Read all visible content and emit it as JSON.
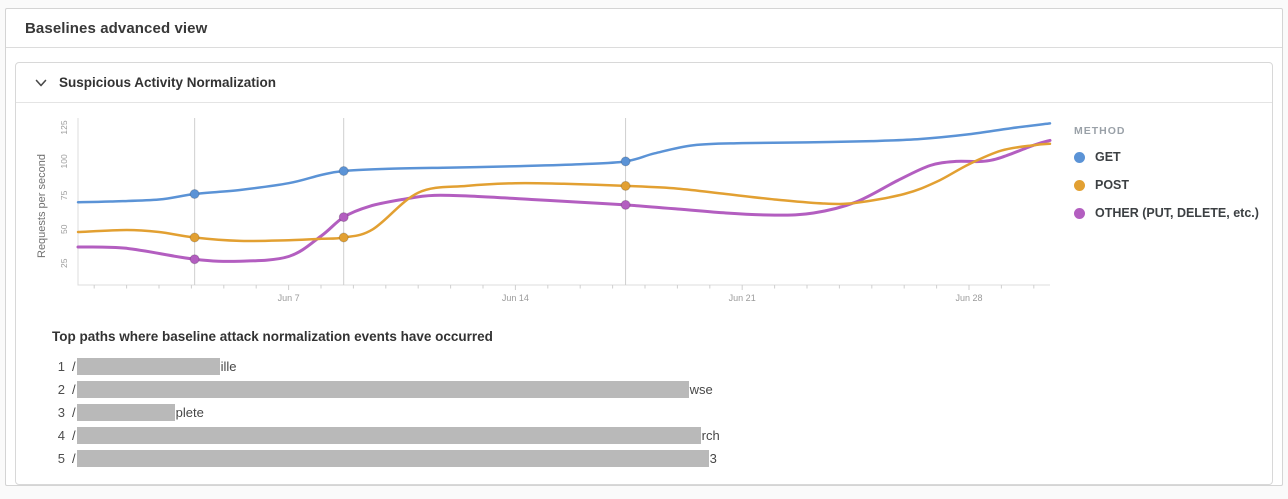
{
  "page": {
    "title": "Baselines advanced view"
  },
  "section": {
    "title": "Suspicious Activity Normalization"
  },
  "chart_data": {
    "type": "line",
    "title": "Suspicious Activity Normalization",
    "ylabel": "Requests per second",
    "legend_title": "METHOD",
    "legend_position": "right",
    "grid": false,
    "x_axis": {
      "unit": "day of June",
      "xlim": [
        0.5,
        30.5
      ],
      "tick_days": [
        7,
        14,
        21,
        28
      ],
      "tick_labels": [
        "Jun 7",
        "Jun 14",
        "Jun 21",
        "Jun 28"
      ],
      "minor_tick_step": 1
    },
    "y_axis": {
      "ylim": [
        9,
        132
      ],
      "ticks": [
        25,
        50,
        75,
        100,
        125
      ]
    },
    "event_days": [
      4.1,
      8.7,
      17.4
    ],
    "series": [
      {
        "name": "GET",
        "color": "#5b93d6",
        "width": 2.5,
        "points": [
          [
            0.5,
            70
          ],
          [
            1.5,
            70.5
          ],
          [
            3,
            72
          ],
          [
            4.1,
            76
          ],
          [
            5.5,
            79
          ],
          [
            7,
            84
          ],
          [
            8,
            90
          ],
          [
            8.7,
            93
          ],
          [
            10,
            94.5
          ],
          [
            12,
            95.5
          ],
          [
            14,
            96.5
          ],
          [
            16,
            98
          ],
          [
            17.4,
            100
          ],
          [
            18.3,
            106
          ],
          [
            19.5,
            112
          ],
          [
            21,
            113.5
          ],
          [
            23,
            114
          ],
          [
            25,
            115
          ],
          [
            26.5,
            116.5
          ],
          [
            28,
            120
          ],
          [
            29.3,
            124.5
          ],
          [
            30.5,
            128
          ]
        ],
        "markers": [
          [
            4.1,
            76
          ],
          [
            8.7,
            93
          ],
          [
            17.4,
            100
          ]
        ]
      },
      {
        "name": "POST",
        "color": "#e2a032",
        "width": 2.5,
        "points": [
          [
            0.5,
            48
          ],
          [
            2,
            49.5
          ],
          [
            3,
            48
          ],
          [
            4.1,
            44
          ],
          [
            5.5,
            41.5
          ],
          [
            7,
            42
          ],
          [
            8,
            43
          ],
          [
            8.7,
            44
          ],
          [
            9.6,
            50
          ],
          [
            11,
            77
          ],
          [
            12.5,
            82
          ],
          [
            14,
            84
          ],
          [
            15.5,
            83.5
          ],
          [
            17.4,
            82
          ],
          [
            19,
            80
          ],
          [
            20.5,
            76
          ],
          [
            22,
            72
          ],
          [
            23.5,
            69
          ],
          [
            24.5,
            69.5
          ],
          [
            26,
            76
          ],
          [
            27,
            85
          ],
          [
            28,
            98
          ],
          [
            29,
            108
          ],
          [
            30,
            112
          ],
          [
            30.5,
            113
          ]
        ],
        "markers": [
          [
            4.1,
            44
          ],
          [
            8.7,
            44
          ],
          [
            17.4,
            82
          ]
        ]
      },
      {
        "name": "OTHER (PUT, DELETE, etc.)",
        "color": "#b35ec0",
        "width": 3,
        "points": [
          [
            0.5,
            37
          ],
          [
            2,
            36
          ],
          [
            4.1,
            28
          ],
          [
            5.5,
            26.5
          ],
          [
            7,
            30
          ],
          [
            8,
            45
          ],
          [
            8.7,
            59
          ],
          [
            9.5,
            67
          ],
          [
            10.5,
            72
          ],
          [
            11.5,
            75
          ],
          [
            13,
            74
          ],
          [
            14.5,
            72
          ],
          [
            16,
            70
          ],
          [
            17.4,
            68
          ],
          [
            19,
            65
          ],
          [
            20.5,
            62
          ],
          [
            22,
            60.5
          ],
          [
            23.2,
            62
          ],
          [
            24.5,
            70
          ],
          [
            25.8,
            86
          ],
          [
            26.8,
            97
          ],
          [
            27.6,
            100
          ],
          [
            28.4,
            100
          ],
          [
            29,
            103
          ],
          [
            30,
            112
          ],
          [
            30.5,
            115.5
          ]
        ],
        "markers": [
          [
            4.1,
            28
          ],
          [
            8.7,
            59
          ],
          [
            17.4,
            68
          ]
        ]
      }
    ]
  },
  "paths_section": {
    "title": "Top paths where baseline attack normalization events have occurred",
    "rows": [
      {
        "index": "1",
        "prefix": "/",
        "redacted_width": 143,
        "suffix": "ille"
      },
      {
        "index": "2",
        "prefix": "/",
        "redacted_width": 612,
        "suffix": "wse"
      },
      {
        "index": "3",
        "prefix": "/",
        "redacted_width": 98,
        "suffix": "plete"
      },
      {
        "index": "4",
        "prefix": "/",
        "redacted_width": 624,
        "suffix": "rch"
      },
      {
        "index": "5",
        "prefix": "/",
        "redacted_width": 632,
        "suffix": "3"
      }
    ]
  },
  "colors": {
    "axis": "#dcdcdc",
    "tick": "#cfcfcf",
    "event_line": "#cfcfcf",
    "axis_text": "#9b9b9b",
    "redaction": "#b9b9b9"
  }
}
